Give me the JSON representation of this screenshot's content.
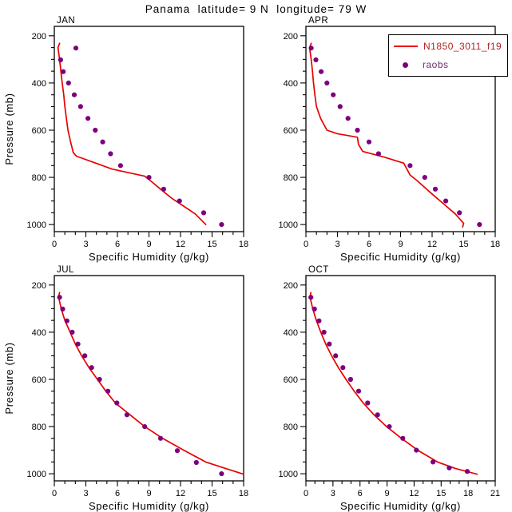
{
  "page": {
    "title": "Panama  latitude= 9 N  longitude= 79 W"
  },
  "axis": {
    "x_label": "Specific Humidity (g/kg)",
    "y_label": "Pressure (mb)"
  },
  "legend": {
    "model_label": "N1850_3011_f19",
    "obs_label": "raobs"
  },
  "colors": {
    "model_line": "#e80000",
    "obs_dot": "#7d007d",
    "model_text": "#b22222",
    "obs_text": "#6a2d6a",
    "axis": "#000000"
  },
  "chart_data": [
    {
      "type": "line",
      "title": "JAN",
      "xlabel": "Specific Humidity (g/kg)",
      "ylabel": "Pressure (mb)",
      "xlim": [
        0,
        18
      ],
      "x_ticks": [
        0,
        3,
        6,
        9,
        12,
        15,
        18
      ],
      "x_minor_step": 1,
      "ylim": [
        160,
        1030
      ],
      "y_ticks": [
        200,
        400,
        600,
        800,
        1000
      ],
      "y_minor_step": 50,
      "y_axis_reversed": true,
      "series": [
        {
          "name": "N1850_3011_f19",
          "type": "line",
          "color_key": "model_line",
          "points": [
            [
              0.5,
              232
            ],
            [
              0.35,
              250
            ],
            [
              0.5,
              300
            ],
            [
              0.62,
              350
            ],
            [
              0.75,
              400
            ],
            [
              0.9,
              450
            ],
            [
              1.0,
              500
            ],
            [
              1.15,
              550
            ],
            [
              1.3,
              600
            ],
            [
              1.55,
              650
            ],
            [
              1.8,
              695
            ],
            [
              2.1,
              710
            ],
            [
              5.5,
              765
            ],
            [
              8.6,
              795
            ],
            [
              9.3,
              820
            ],
            [
              10.1,
              850
            ],
            [
              11.2,
              890
            ],
            [
              12.4,
              925
            ],
            [
              13.4,
              955
            ],
            [
              14.4,
              1000
            ]
          ]
        },
        {
          "name": "raobs",
          "type": "scatter",
          "color_key": "obs_dot",
          "points": [
            [
              2.05,
              252
            ],
            [
              0.6,
              302
            ],
            [
              0.85,
              352
            ],
            [
              1.35,
              400
            ],
            [
              1.9,
              450
            ],
            [
              2.5,
              500
            ],
            [
              3.2,
              550
            ],
            [
              3.9,
              600
            ],
            [
              4.6,
              650
            ],
            [
              5.35,
              700
            ],
            [
              6.3,
              750
            ],
            [
              9.0,
              800
            ],
            [
              10.4,
              850
            ],
            [
              11.9,
              900
            ],
            [
              14.2,
              950
            ],
            [
              15.9,
              1000
            ]
          ]
        }
      ]
    },
    {
      "type": "line",
      "title": "APR",
      "xlabel": "Specific Humidity (g/kg)",
      "ylabel": "Pressure (mb)",
      "xlim": [
        0,
        18
      ],
      "x_ticks": [
        0,
        3,
        6,
        9,
        12,
        15,
        18
      ],
      "x_minor_step": 1,
      "ylim": [
        160,
        1030
      ],
      "y_ticks": [
        200,
        400,
        600,
        800,
        1000
      ],
      "y_minor_step": 50,
      "y_axis_reversed": true,
      "series": [
        {
          "name": "N1850_3011_f19",
          "type": "line",
          "color_key": "model_line",
          "points": [
            [
              0.5,
              232
            ],
            [
              0.35,
              250
            ],
            [
              0.5,
              300
            ],
            [
              0.62,
              350
            ],
            [
              0.72,
              400
            ],
            [
              0.85,
              450
            ],
            [
              1.0,
              500
            ],
            [
              1.4,
              550
            ],
            [
              2.0,
              600
            ],
            [
              3.0,
              615
            ],
            [
              4.9,
              630
            ],
            [
              5.0,
              660
            ],
            [
              5.4,
              690
            ],
            [
              7.5,
              715
            ],
            [
              9.3,
              740
            ],
            [
              9.9,
              790
            ],
            [
              10.6,
              815
            ],
            [
              11.6,
              855
            ],
            [
              12.9,
              905
            ],
            [
              14.2,
              955
            ],
            [
              15.0,
              995
            ],
            [
              14.9,
              1010
            ]
          ]
        },
        {
          "name": "raobs",
          "type": "scatter",
          "color_key": "obs_dot",
          "points": [
            [
              0.5,
              252
            ],
            [
              0.95,
              302
            ],
            [
              1.45,
              352
            ],
            [
              2.0,
              400
            ],
            [
              2.6,
              450
            ],
            [
              3.25,
              500
            ],
            [
              4.0,
              550
            ],
            [
              4.9,
              600
            ],
            [
              6.0,
              650
            ],
            [
              6.9,
              700
            ],
            [
              9.9,
              750
            ],
            [
              11.3,
              800
            ],
            [
              12.3,
              850
            ],
            [
              13.3,
              900
            ],
            [
              14.6,
              950
            ],
            [
              16.5,
              1000
            ]
          ]
        }
      ]
    },
    {
      "type": "line",
      "title": "JUL",
      "xlabel": "Specific Humidity (g/kg)",
      "ylabel": "Pressure (mb)",
      "xlim": [
        0,
        18
      ],
      "x_ticks": [
        0,
        3,
        6,
        9,
        12,
        15,
        18
      ],
      "x_minor_step": 1,
      "ylim": [
        160,
        1030
      ],
      "y_ticks": [
        200,
        400,
        600,
        800,
        1000
      ],
      "y_minor_step": 50,
      "y_axis_reversed": true,
      "series": [
        {
          "name": "N1850_3011_f19",
          "type": "line",
          "color_key": "model_line",
          "points": [
            [
              0.5,
              232
            ],
            [
              0.4,
              250
            ],
            [
              0.65,
              300
            ],
            [
              1.0,
              350
            ],
            [
              1.5,
              400
            ],
            [
              2.0,
              450
            ],
            [
              2.6,
              500
            ],
            [
              3.3,
              550
            ],
            [
              4.1,
              600
            ],
            [
              4.9,
              650
            ],
            [
              5.8,
              700
            ],
            [
              7.2,
              750
            ],
            [
              8.6,
              800
            ],
            [
              10.3,
              850
            ],
            [
              12.3,
              900
            ],
            [
              14.4,
              950
            ],
            [
              16.3,
              978
            ],
            [
              18.0,
              1002
            ]
          ]
        },
        {
          "name": "raobs",
          "type": "scatter",
          "color_key": "obs_dot",
          "points": [
            [
              0.5,
              252
            ],
            [
              0.8,
              302
            ],
            [
              1.2,
              352
            ],
            [
              1.7,
              400
            ],
            [
              2.25,
              450
            ],
            [
              2.9,
              500
            ],
            [
              3.55,
              550
            ],
            [
              4.3,
              600
            ],
            [
              5.1,
              650
            ],
            [
              5.95,
              700
            ],
            [
              6.9,
              750
            ],
            [
              8.6,
              800
            ],
            [
              10.1,
              850
            ],
            [
              11.7,
              902
            ],
            [
              13.5,
              952
            ],
            [
              15.9,
              1000
            ]
          ]
        }
      ]
    },
    {
      "type": "line",
      "title": "OCT",
      "xlabel": "Specific Humidity (g/kg)",
      "ylabel": "Pressure (mb)",
      "xlim": [
        0,
        21
      ],
      "x_ticks": [
        0,
        3,
        6,
        9,
        12,
        15,
        18,
        21
      ],
      "x_minor_step": 1,
      "ylim": [
        160,
        1030
      ],
      "y_ticks": [
        200,
        400,
        600,
        800,
        1000
      ],
      "y_minor_step": 50,
      "y_axis_reversed": true,
      "series": [
        {
          "name": "N1850_3011_f19",
          "type": "line",
          "color_key": "model_line",
          "points": [
            [
              0.55,
              232
            ],
            [
              0.45,
              250
            ],
            [
              0.75,
              300
            ],
            [
              1.15,
              350
            ],
            [
              1.65,
              400
            ],
            [
              2.2,
              450
            ],
            [
              2.85,
              500
            ],
            [
              3.6,
              550
            ],
            [
              4.45,
              600
            ],
            [
              5.35,
              650
            ],
            [
              6.35,
              700
            ],
            [
              7.55,
              750
            ],
            [
              8.95,
              800
            ],
            [
              10.6,
              850
            ],
            [
              12.4,
              900
            ],
            [
              14.6,
              950
            ],
            [
              16.6,
              978
            ],
            [
              19.0,
              1002
            ]
          ]
        },
        {
          "name": "raobs",
          "type": "scatter",
          "color_key": "obs_dot",
          "points": [
            [
              0.55,
              252
            ],
            [
              0.95,
              302
            ],
            [
              1.45,
              352
            ],
            [
              2.0,
              400
            ],
            [
              2.6,
              450
            ],
            [
              3.3,
              500
            ],
            [
              4.1,
              550
            ],
            [
              4.95,
              600
            ],
            [
              5.85,
              650
            ],
            [
              6.85,
              700
            ],
            [
              7.95,
              750
            ],
            [
              9.25,
              800
            ],
            [
              10.75,
              850
            ],
            [
              12.25,
              900
            ],
            [
              14.1,
              950
            ],
            [
              15.9,
              975
            ],
            [
              17.9,
              990
            ]
          ]
        }
      ]
    }
  ]
}
